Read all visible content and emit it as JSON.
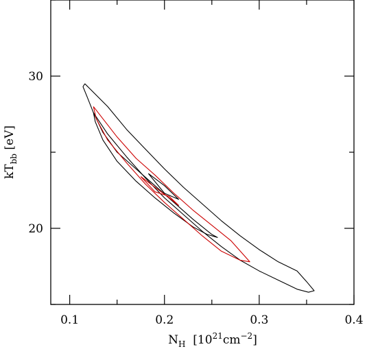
{
  "chart_data": {
    "type": "contour",
    "xlabel": {
      "base": "N",
      "sub": "H",
      "text": "  [10",
      "sup": "21",
      "after": "cm",
      "sup2": "−2",
      "close": "]"
    },
    "ylabel": {
      "base": "kT",
      "sub": "bb",
      "text": " [eV]"
    },
    "xlim": [
      0.08,
      0.4
    ],
    "ylim": [
      15,
      35
    ],
    "xticks": [
      0.1,
      0.2,
      0.3,
      0.4
    ],
    "xtick_labels": [
      "0.1",
      "0.2",
      "0.3",
      "0.4"
    ],
    "yticks": [
      20,
      30
    ],
    "ytick_labels": [
      "20",
      "30"
    ],
    "x_minor_step": 0.05,
    "y_minor_step": 5,
    "series": [
      {
        "color": "#000000",
        "points": [
          [
            0.116,
            29.5
          ],
          [
            0.14,
            28.0
          ],
          [
            0.16,
            26.5
          ],
          [
            0.18,
            25.2
          ],
          [
            0.2,
            23.9
          ],
          [
            0.22,
            22.7
          ],
          [
            0.24,
            21.6
          ],
          [
            0.26,
            20.5
          ],
          [
            0.28,
            19.5
          ],
          [
            0.3,
            18.6
          ],
          [
            0.32,
            17.8
          ],
          [
            0.34,
            17.2
          ],
          [
            0.35,
            16.5
          ],
          [
            0.358,
            15.9
          ],
          [
            0.352,
            15.8
          ],
          [
            0.34,
            16.0
          ],
          [
            0.32,
            16.6
          ],
          [
            0.3,
            17.2
          ],
          [
            0.28,
            17.9
          ],
          [
            0.26,
            18.8
          ],
          [
            0.24,
            19.8
          ],
          [
            0.22,
            20.9
          ],
          [
            0.2,
            22.0
          ],
          [
            0.18,
            23.3
          ],
          [
            0.16,
            24.7
          ],
          [
            0.14,
            26.2
          ],
          [
            0.125,
            27.6
          ],
          [
            0.118,
            28.7
          ],
          [
            0.114,
            29.3
          ],
          [
            0.116,
            29.5
          ]
        ]
      },
      {
        "color": "#000000",
        "points": [
          [
            0.125,
            27.6
          ],
          [
            0.135,
            26.3
          ],
          [
            0.15,
            25.0
          ],
          [
            0.17,
            23.9
          ],
          [
            0.19,
            22.8
          ],
          [
            0.21,
            21.7
          ],
          [
            0.23,
            20.6
          ],
          [
            0.25,
            19.6
          ],
          [
            0.256,
            19.4
          ],
          [
            0.245,
            19.6
          ],
          [
            0.23,
            20.1
          ],
          [
            0.21,
            21.0
          ],
          [
            0.19,
            22.0
          ],
          [
            0.17,
            23.1
          ],
          [
            0.15,
            24.4
          ],
          [
            0.135,
            25.8
          ],
          [
            0.127,
            27.0
          ],
          [
            0.125,
            27.6
          ]
        ]
      },
      {
        "color": "#000000",
        "points": [
          [
            0.183,
            23.6
          ],
          [
            0.2,
            22.8
          ],
          [
            0.215,
            21.9
          ],
          [
            0.2,
            22.3
          ],
          [
            0.183,
            23.6
          ]
        ]
      },
      {
        "color": "#cc0000",
        "points": [
          [
            0.125,
            28.0
          ],
          [
            0.15,
            26.0
          ],
          [
            0.17,
            24.6
          ],
          [
            0.19,
            23.5
          ],
          [
            0.21,
            22.3
          ],
          [
            0.23,
            21.2
          ],
          [
            0.25,
            20.2
          ],
          [
            0.27,
            19.2
          ],
          [
            0.29,
            17.8
          ],
          [
            0.28,
            17.9
          ],
          [
            0.26,
            18.5
          ],
          [
            0.24,
            19.5
          ],
          [
            0.22,
            20.6
          ],
          [
            0.2,
            21.7
          ],
          [
            0.18,
            22.9
          ],
          [
            0.16,
            24.3
          ],
          [
            0.14,
            25.8
          ],
          [
            0.128,
            27.2
          ],
          [
            0.125,
            28.0
          ]
        ]
      },
      {
        "color": "#cc0000",
        "points": [
          [
            0.175,
            23.4
          ],
          [
            0.19,
            22.7
          ],
          [
            0.205,
            22.0
          ],
          [
            0.215,
            21.5
          ],
          [
            0.205,
            22.1
          ],
          [
            0.19,
            22.4
          ],
          [
            0.175,
            23.4
          ]
        ]
      }
    ]
  }
}
